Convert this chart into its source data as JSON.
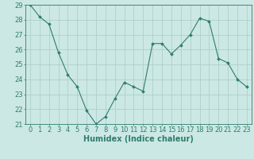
{
  "x": [
    0,
    1,
    2,
    3,
    4,
    5,
    6,
    7,
    8,
    9,
    10,
    11,
    12,
    13,
    14,
    15,
    16,
    17,
    18,
    19,
    20,
    21,
    22,
    23
  ],
  "y": [
    29,
    28.2,
    27.7,
    25.8,
    24.3,
    23.5,
    21.9,
    21.0,
    21.5,
    22.7,
    23.8,
    23.5,
    23.2,
    26.4,
    26.4,
    25.7,
    26.3,
    27.0,
    28.1,
    27.9,
    25.4,
    25.1,
    24.0,
    23.5
  ],
  "line_color": "#2e7d6e",
  "marker": "D",
  "marker_size": 2.0,
  "bg_color": "#cce8e4",
  "grid_color": "#b0cfc9",
  "xlabel": "Humidex (Indice chaleur)",
  "ylim": [
    21,
    29
  ],
  "xlim": [
    -0.5,
    23.5
  ],
  "yticks": [
    21,
    22,
    23,
    24,
    25,
    26,
    27,
    28,
    29
  ],
  "xticks": [
    0,
    1,
    2,
    3,
    4,
    5,
    6,
    7,
    8,
    9,
    10,
    11,
    12,
    13,
    14,
    15,
    16,
    17,
    18,
    19,
    20,
    21,
    22,
    23
  ],
  "axis_color": "#2e7d6e",
  "tick_color": "#2e7d6e",
  "label_color": "#2e7d6e",
  "font_size": 6.0,
  "xlabel_fontsize": 7.0
}
